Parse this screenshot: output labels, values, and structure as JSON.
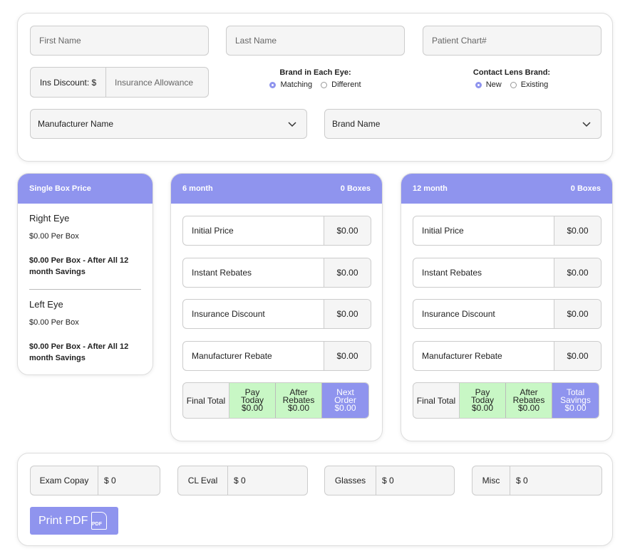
{
  "form": {
    "first_name": "First Name",
    "last_name": "Last Name",
    "patient_chart": "Patient Chart#",
    "ins_discount_label": "Ins Discount: $",
    "insurance_allowance": "Insurance Allowance",
    "brand_each_eye": {
      "label": "Brand in Each Eye:",
      "options": [
        "Matching",
        "Different"
      ]
    },
    "contact_lens_brand": {
      "label": "Contact Lens Brand:",
      "options": [
        "New",
        "Existing"
      ]
    },
    "manufacturer": "Manufacturer Name",
    "brand": "Brand Name"
  },
  "single_box": {
    "title": "Single Box Price",
    "eyes": [
      {
        "name": "Right Eye",
        "price": "$0.00 Per Box",
        "after": "$0.00 Per Box - After All 12 month Savings"
      },
      {
        "name": "Left Eye",
        "price": "$0.00 Per Box",
        "after": "$0.00 Per Box - After All 12 month Savings"
      }
    ]
  },
  "plans": [
    {
      "title": "6 month",
      "boxes": "0 Boxes",
      "rows": [
        {
          "label": "Initial Price",
          "value": "$0.00"
        },
        {
          "label": "Instant Rebates",
          "value": "$0.00"
        },
        {
          "label": "Insurance Discount",
          "value": "$0.00"
        },
        {
          "label": "Manufacturer Rebate",
          "value": "$0.00"
        }
      ],
      "final": {
        "label": "Final Total",
        "cells": [
          {
            "label": "Pay Today",
            "value": "$0.00"
          },
          {
            "label": "After Rebates",
            "value": "$0.00"
          },
          {
            "label": "Next Order",
            "value": "$0.00"
          }
        ]
      }
    },
    {
      "title": "12 month",
      "boxes": "0 Boxes",
      "rows": [
        {
          "label": "Initial Price",
          "value": "$0.00"
        },
        {
          "label": "Instant Rebates",
          "value": "$0.00"
        },
        {
          "label": "Insurance Discount",
          "value": "$0.00"
        },
        {
          "label": "Manufacturer Rebate",
          "value": "$0.00"
        }
      ],
      "final": {
        "label": "Final Total",
        "cells": [
          {
            "label": "Pay Today",
            "value": "$0.00"
          },
          {
            "label": "After Rebates",
            "value": "$0.00"
          },
          {
            "label": "Total Savings",
            "value": "$0.00"
          }
        ]
      }
    }
  ],
  "costs": [
    {
      "label": "Exam Copay",
      "value": "$ 0"
    },
    {
      "label": "CL Eval",
      "value": "$ 0"
    },
    {
      "label": "Glasses",
      "value": "$ 0"
    },
    {
      "label": "Misc",
      "value": "$ 0"
    }
  ],
  "print": "Print PDF",
  "pdf_icon": "PDF"
}
